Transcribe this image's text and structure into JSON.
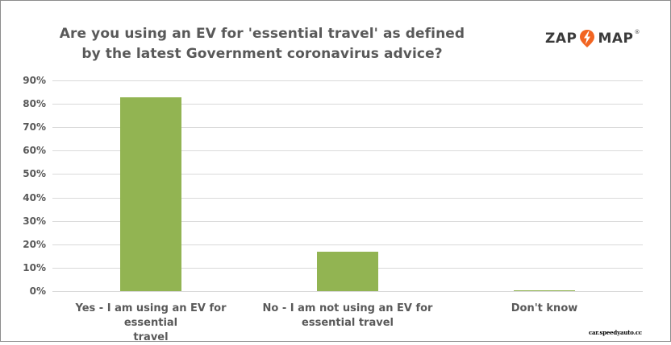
{
  "chart_data": {
    "type": "bar",
    "title": "Are you using an EV for 'essential travel' as defined by the latest Government coronavirus advice?",
    "title_lines": [
      "Are you using an EV for 'essential travel' as defined",
      "by the latest Government coronavirus advice?"
    ],
    "categories": [
      "Yes - I am using an EV for essential travel",
      "No - I am not using an EV for essential travel",
      "Don't know"
    ],
    "category_lines": [
      [
        "Yes - I am using an EV for essential",
        "travel"
      ],
      [
        "No - I am not using an EV for",
        "essential travel"
      ],
      [
        "Don't know"
      ]
    ],
    "values": [
      82.8,
      16.8,
      0.4
    ],
    "value_unit": "%",
    "xlabel": "",
    "ylabel": "",
    "ylim": [
      0,
      90
    ],
    "yticks": [
      "0%",
      "10%",
      "20%",
      "30%",
      "40%",
      "50%",
      "60%",
      "70%",
      "80%",
      "90%"
    ],
    "grid": true,
    "legend": null,
    "bar_color": "#92b452"
  },
  "branding": {
    "logo_left": "ZAP",
    "logo_right": "MAP",
    "logo_mark": "®",
    "logo_accent_color": "#f26522"
  },
  "watermark": "car.speedyauto.cc"
}
